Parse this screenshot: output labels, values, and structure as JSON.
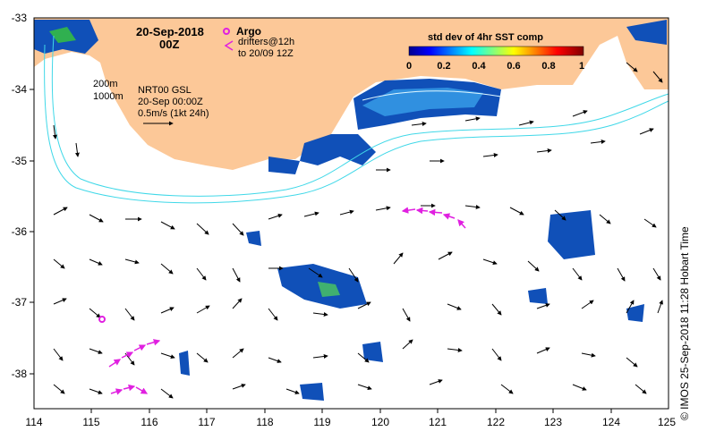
{
  "title": {
    "date": "20-Sep-2018",
    "time": "00Z"
  },
  "legend": {
    "argo_label": "Argo",
    "drifter_label_1": "drifters@12h",
    "drifter_label_2": "to 20/09 12Z",
    "argo_color": "#e020e0",
    "drifter_color": "#e020e0"
  },
  "colorbar": {
    "title": "std dev of 4hr SST comp",
    "ticks": [
      "0",
      "0.2",
      "0.4",
      "0.6",
      "0.8",
      "1"
    ]
  },
  "info": {
    "iso1": "200m",
    "iso2": "1000m",
    "product": "NRT00 GSL",
    "datetime": "20-Sep 00:00Z",
    "scale": "0.5m/s (1kt 24h)"
  },
  "axes": {
    "lon_ticks": [
      "114",
      "115",
      "116",
      "117",
      "118",
      "119",
      "120",
      "121",
      "122",
      "123",
      "124",
      "125"
    ],
    "lat_ticks": [
      "-33",
      "-34",
      "-35",
      "-36",
      "-37",
      "-38"
    ],
    "lon_range": [
      114,
      125
    ],
    "lat_range": [
      -38.5,
      -33
    ]
  },
  "credit": "© IMOS 25-Sep-2018 11:28 Hobart Time",
  "colors": {
    "land": "#fcc898",
    "isobath": "#40d8e8",
    "arrow": "#000000"
  }
}
